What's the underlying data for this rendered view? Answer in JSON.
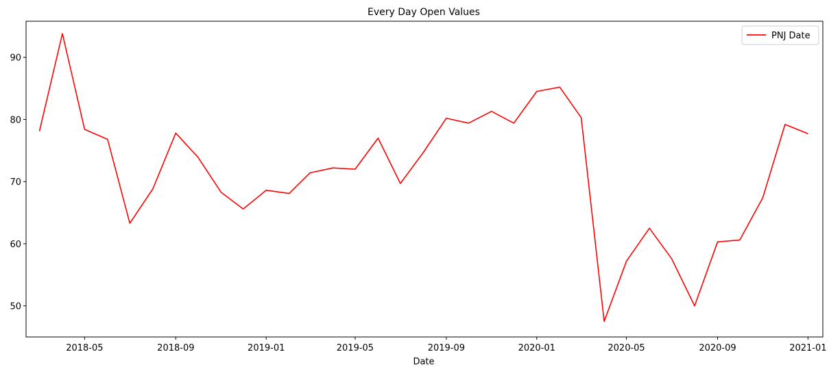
{
  "chart_data": {
    "type": "line",
    "title": "Every Day Open Values",
    "xlabel": "Date",
    "ylabel": "",
    "xlim": [
      "2018-02-11",
      "2021-01-21"
    ],
    "ylim": [
      45.0,
      95.8
    ],
    "x_ticks": [
      {
        "date": "2018-05-01",
        "label": "2018-05"
      },
      {
        "date": "2018-09-01",
        "label": "2018-09"
      },
      {
        "date": "2019-01-01",
        "label": "2019-01"
      },
      {
        "date": "2019-05-01",
        "label": "2019-05"
      },
      {
        "date": "2019-09-01",
        "label": "2019-09"
      },
      {
        "date": "2020-01-01",
        "label": "2020-01"
      },
      {
        "date": "2020-05-01",
        "label": "2020-05"
      },
      {
        "date": "2020-09-01",
        "label": "2020-09"
      },
      {
        "date": "2021-01-01",
        "label": "2021-01"
      }
    ],
    "y_ticks": [
      50,
      60,
      70,
      80,
      90
    ],
    "grid": false,
    "legend_position": "top-right",
    "series": [
      {
        "name": "PNJ Date",
        "color": "#ff0000",
        "x": [
          "2018-03-01",
          "2018-04-01",
          "2018-05-01",
          "2018-06-01",
          "2018-07-01",
          "2018-08-01",
          "2018-09-01",
          "2018-10-01",
          "2018-11-01",
          "2018-12-01",
          "2019-01-01",
          "2019-02-01",
          "2019-03-01",
          "2019-04-01",
          "2019-05-01",
          "2019-06-01",
          "2019-07-01",
          "2019-08-01",
          "2019-09-01",
          "2019-10-01",
          "2019-11-01",
          "2019-12-01",
          "2020-01-01",
          "2020-02-01",
          "2020-03-01",
          "2020-04-01",
          "2020-05-01",
          "2020-06-01",
          "2020-07-01",
          "2020-08-01",
          "2020-09-01",
          "2020-10-01",
          "2020-11-01",
          "2020-12-01",
          "2021-01-01"
        ],
        "y": [
          78.1,
          93.8,
          78.4,
          76.8,
          63.3,
          68.8,
          77.8,
          73.9,
          68.3,
          65.6,
          68.6,
          68.1,
          71.4,
          72.2,
          72.0,
          77.0,
          69.7,
          74.7,
          80.2,
          79.4,
          81.3,
          79.4,
          84.5,
          85.2,
          80.3,
          47.5,
          57.2,
          62.5,
          57.6,
          50.0,
          60.3,
          60.6,
          67.4,
          79.2,
          77.7
        ]
      }
    ]
  }
}
